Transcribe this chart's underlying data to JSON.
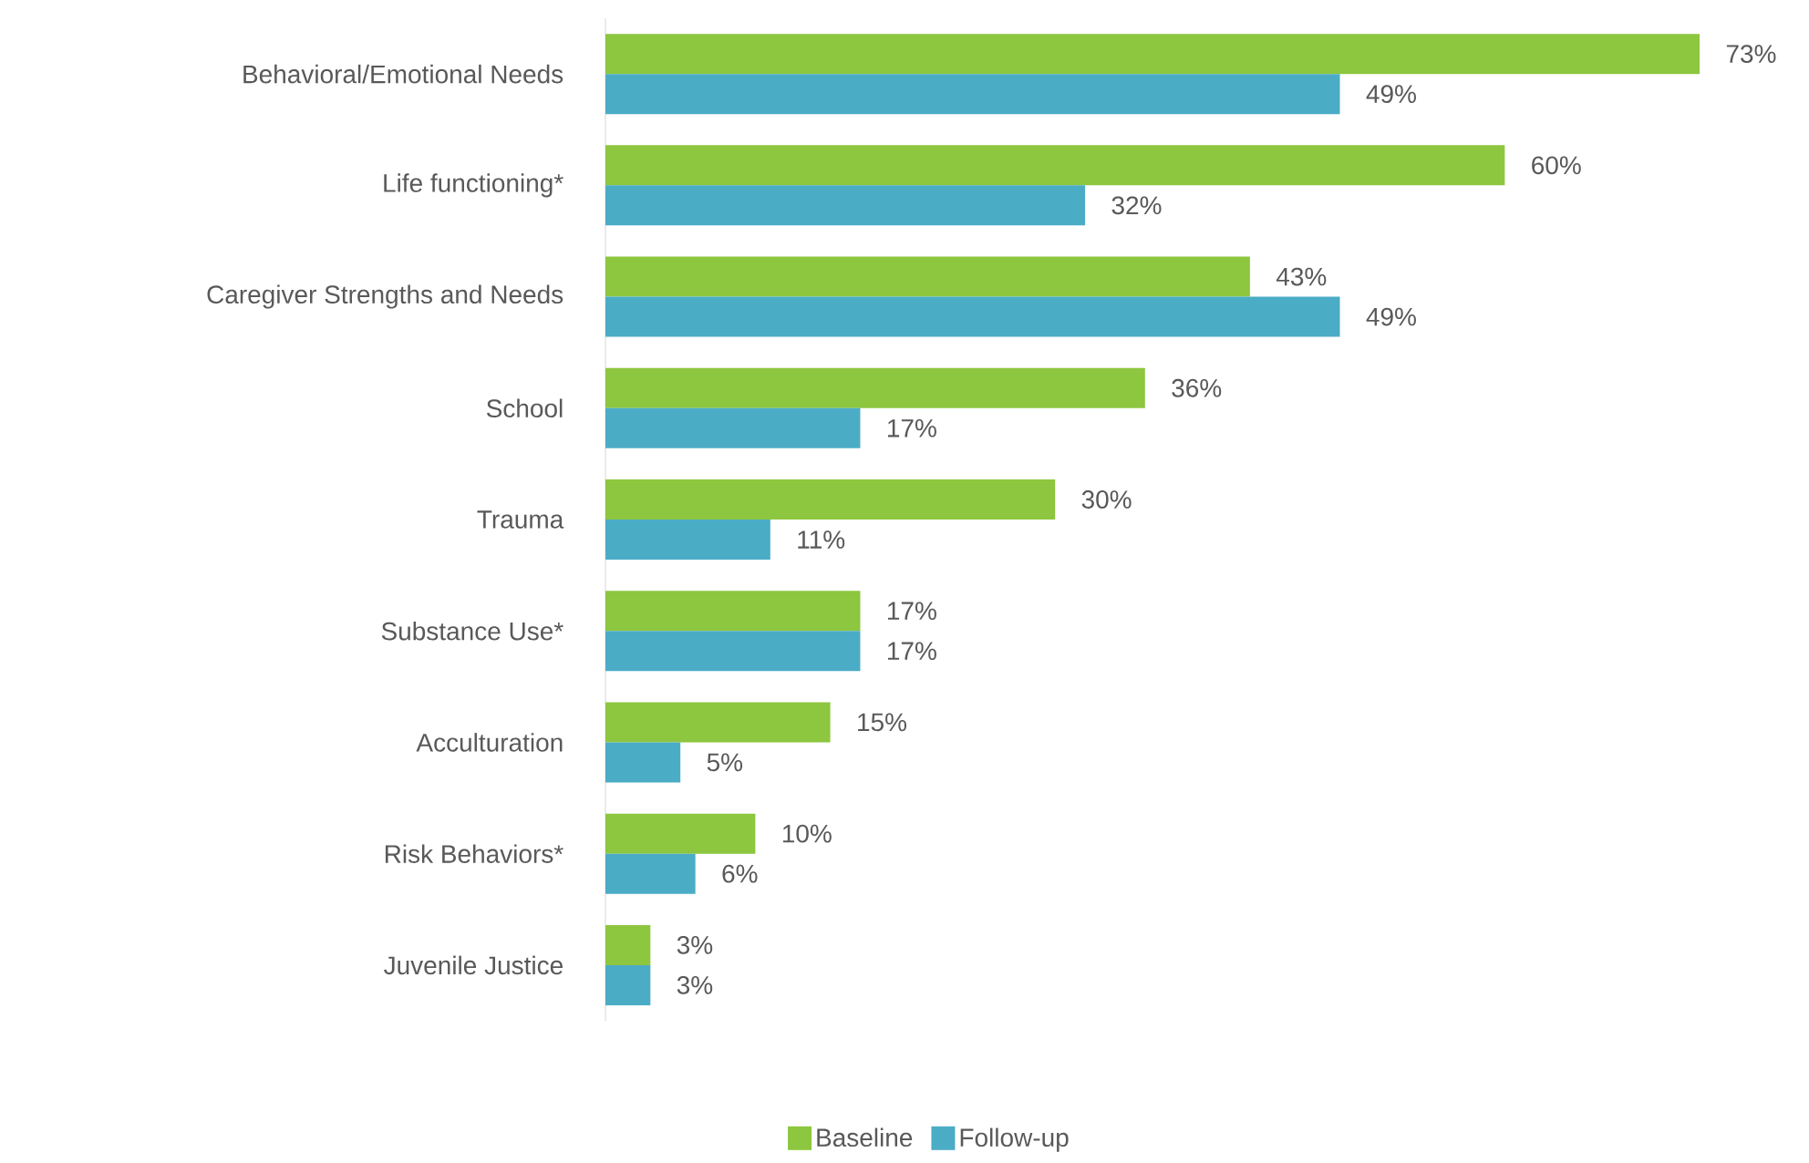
{
  "chart_data": {
    "type": "bar",
    "orientation": "horizontal",
    "legend": "bottom",
    "categories": [
      "Behavioral/Emotional Needs",
      "Life functioning*",
      "Caregiver Strengths and Needs",
      "School",
      "Trauma",
      "Substance Use*",
      "Acculturation",
      "Risk Behaviors*",
      "Juvenile Justice"
    ],
    "series": [
      {
        "name": "Baseline",
        "color": "#8dc63f",
        "values": [
          73,
          60,
          43,
          36,
          30,
          17,
          15,
          10,
          3
        ],
        "value_labels": [
          "73%",
          "60%",
          "43%",
          "36%",
          "30%",
          "17%",
          "15%",
          "10%",
          "3%"
        ]
      },
      {
        "name": "Follow-up",
        "color": "#4bacc6",
        "values": [
          49,
          32,
          49,
          17,
          11,
          17,
          5,
          6,
          3
        ],
        "value_labels": [
          "49%",
          "32%",
          "49%",
          "17%",
          "11%",
          "17%",
          "5%",
          "6%",
          "3%"
        ]
      }
    ]
  }
}
